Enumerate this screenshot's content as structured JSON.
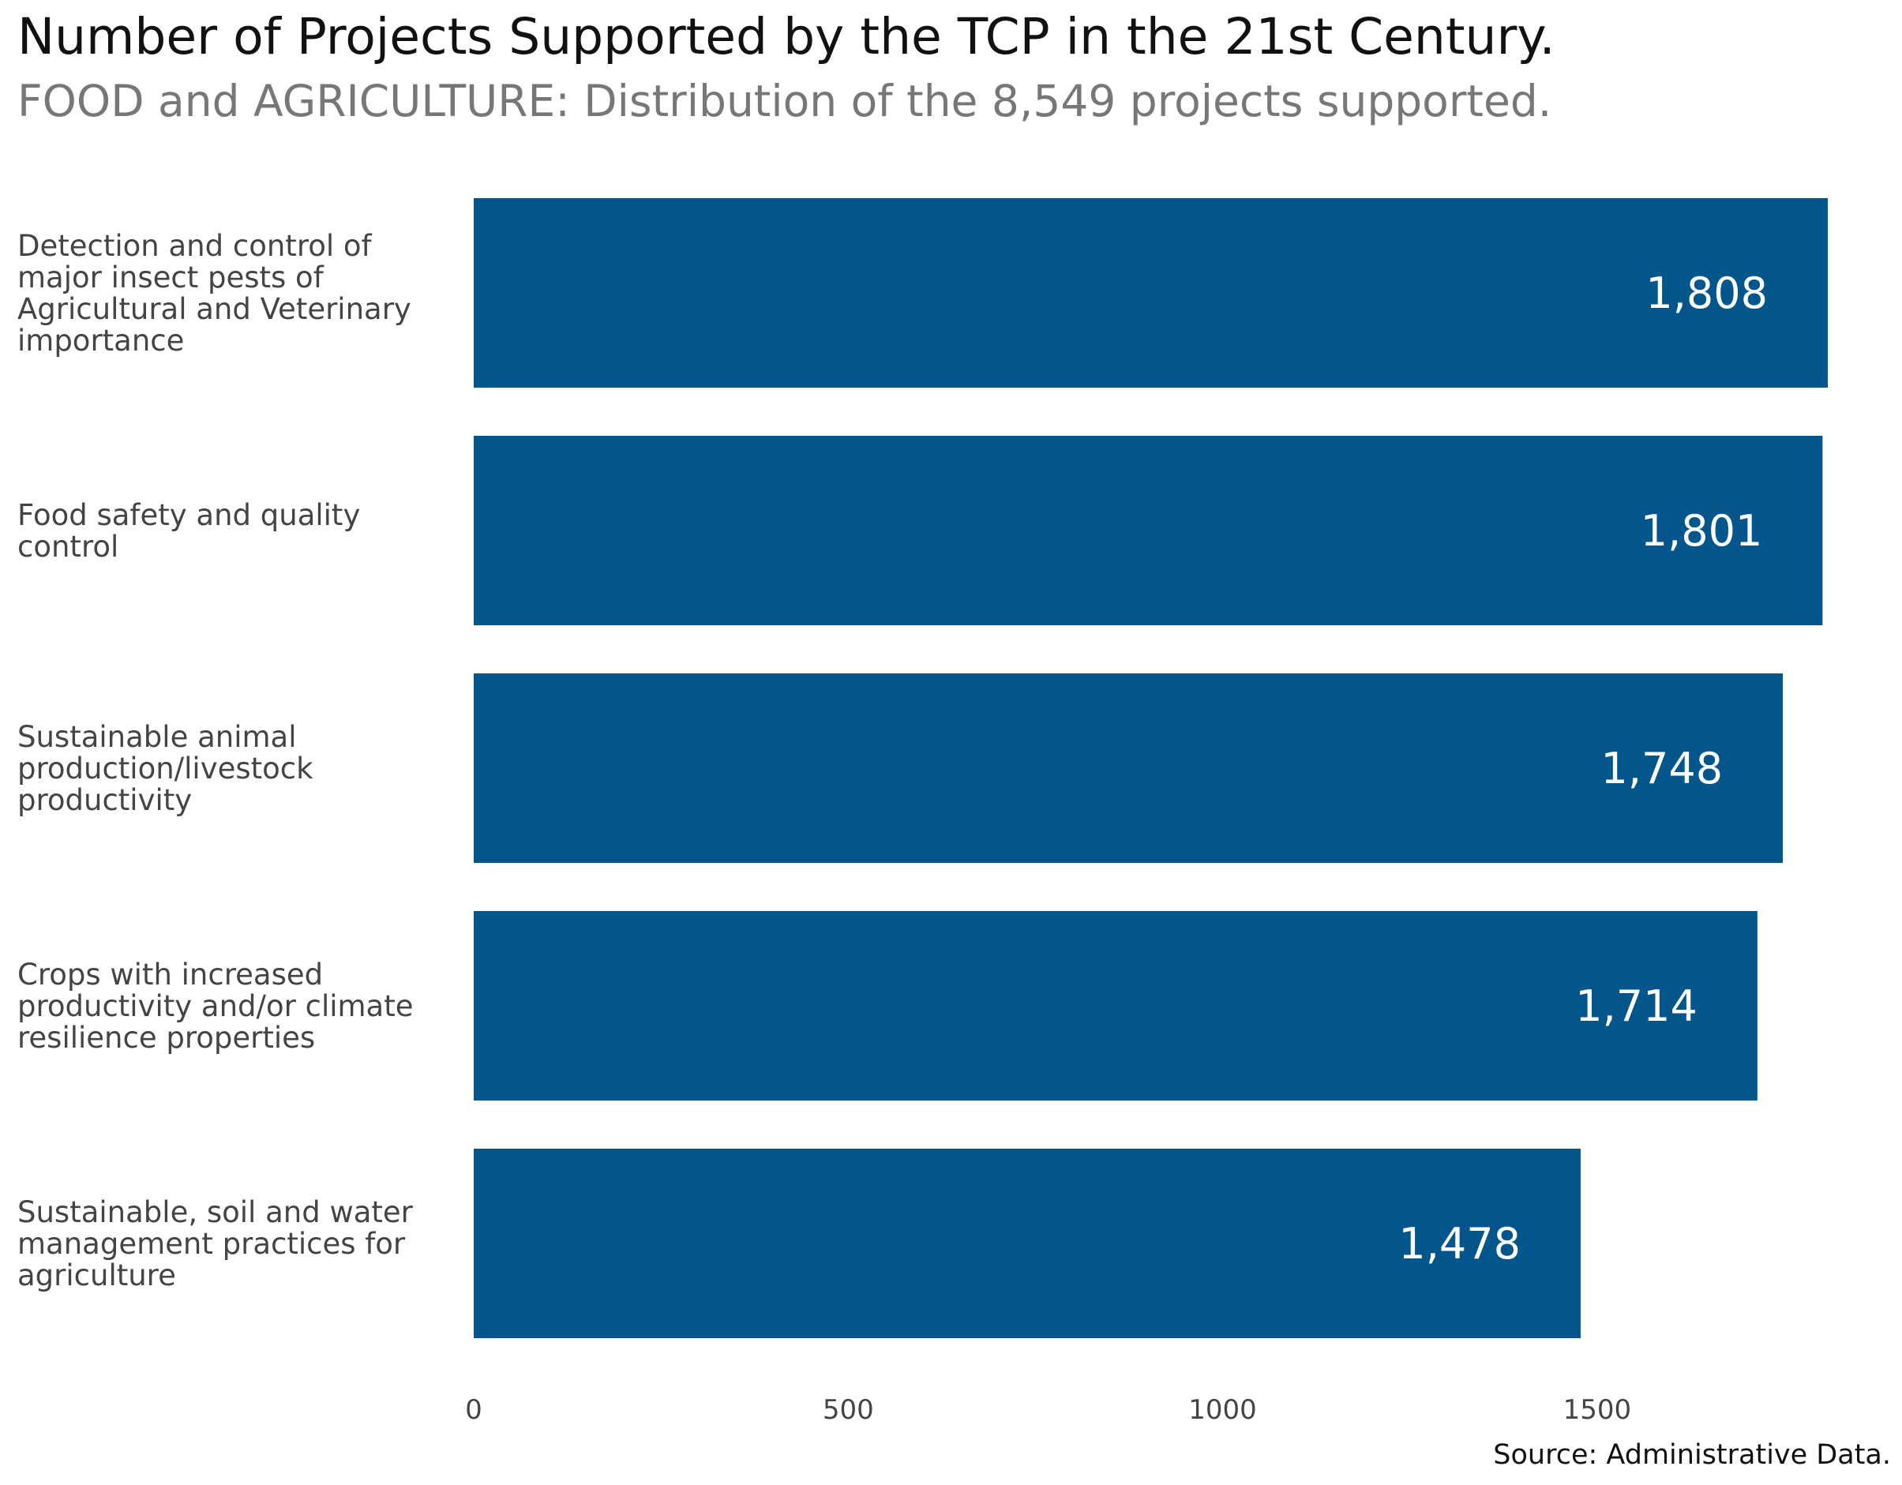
{
  "title": "Number of Projects Supported by the TCP in the 21st Century.",
  "subtitle": "FOOD and AGRICULTURE: Distribution of the 8,549 projects supported.",
  "source": "Source: Administrative Data.",
  "colors": {
    "bar": "#02568B",
    "value_label": "#ffffff",
    "axis_text": "#444444"
  },
  "chart_data": {
    "type": "bar",
    "orientation": "horizontal",
    "categories": [
      [
        "Detection and control of",
        "major insect pests of",
        "Agricultural and Veterinary",
        "importance"
      ],
      [
        "Food safety and quality",
        "control"
      ],
      [
        "Sustainable animal",
        "production/livestock",
        "productivity"
      ],
      [
        "Crops with increased",
        "productivity and/or climate",
        "resilience properties"
      ],
      [
        "Sustainable, soil and water",
        "management practices for",
        "agriculture"
      ]
    ],
    "values": [
      1808,
      1801,
      1748,
      1714,
      1478
    ],
    "value_labels": [
      "1,808",
      "1,801",
      "1,748",
      "1,714",
      "1,478"
    ],
    "xticks": [
      0,
      500,
      1000,
      1500
    ],
    "xtick_labels": [
      "0",
      "500",
      "1000",
      "1500"
    ],
    "xlim": [
      0,
      1808
    ],
    "grid": false,
    "legend": "none"
  }
}
